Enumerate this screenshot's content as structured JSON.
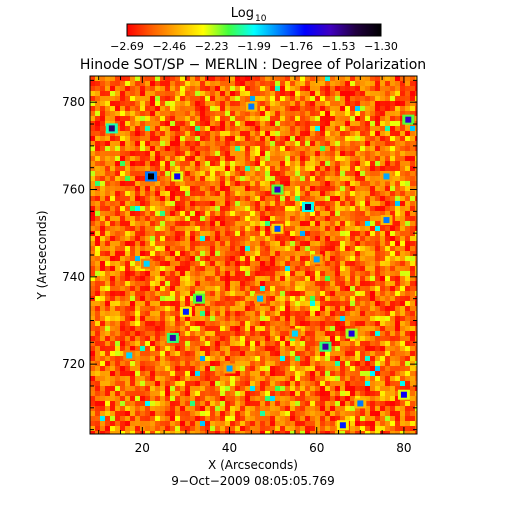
{
  "colorbar": {
    "title": "Log",
    "title_sub": "10",
    "tick_labels": [
      "−2.69",
      "−2.46",
      "−2.23",
      "−1.99",
      "−1.76",
      "−1.53",
      "−1.30"
    ],
    "colors": [
      "#ff0000",
      "#ff6000",
      "#ffb000",
      "#ffff00",
      "#40ff40",
      "#00ffff",
      "#0080ff",
      "#0000ff",
      "#4000c0",
      "#200040",
      "#000000"
    ]
  },
  "chart_data": {
    "type": "heatmap",
    "title": "Hinode SOT/SP − MERLIN : Degree of Polarization",
    "xlabel": "X (Arcseconds)",
    "ylabel": "Y (Arcseconds)",
    "xlim": [
      8,
      83
    ],
    "ylim": [
      704,
      786
    ],
    "xticks": [
      20,
      40,
      60,
      80
    ],
    "yticks": [
      720,
      740,
      760,
      780
    ],
    "value_range": [
      -2.69,
      -1.3
    ],
    "value_label": "Log10",
    "footer": "9−Oct−2009 08:05:05.769",
    "hotspots": [
      {
        "x": 22,
        "y": 763,
        "value": -1.3
      },
      {
        "x": 13,
        "y": 774,
        "value": -1.5
      },
      {
        "x": 51,
        "y": 760,
        "value": -1.6
      },
      {
        "x": 58,
        "y": 756,
        "value": -1.45
      },
      {
        "x": 28,
        "y": 763,
        "value": -1.7
      },
      {
        "x": 30,
        "y": 732,
        "value": -1.75
      },
      {
        "x": 27,
        "y": 726,
        "value": -1.55
      },
      {
        "x": 33,
        "y": 735,
        "value": -1.6
      },
      {
        "x": 62,
        "y": 724,
        "value": -1.55
      },
      {
        "x": 68,
        "y": 727,
        "value": -1.65
      },
      {
        "x": 81,
        "y": 776,
        "value": -1.6
      },
      {
        "x": 80,
        "y": 713,
        "value": -1.7
      },
      {
        "x": 45,
        "y": 779,
        "value": -1.85
      },
      {
        "x": 51,
        "y": 751,
        "value": -1.8
      },
      {
        "x": 76,
        "y": 753,
        "value": -1.85
      },
      {
        "x": 60,
        "y": 744,
        "value": -1.9
      },
      {
        "x": 70,
        "y": 711,
        "value": -1.85
      },
      {
        "x": 66,
        "y": 706,
        "value": -1.75
      },
      {
        "x": 40,
        "y": 719,
        "value": -1.9
      },
      {
        "x": 76,
        "y": 763,
        "value": -1.9
      },
      {
        "x": 21,
        "y": 743,
        "value": -1.95
      },
      {
        "x": 55,
        "y": 727,
        "value": -1.95
      },
      {
        "x": 47,
        "y": 735,
        "value": -1.92
      },
      {
        "x": 17,
        "y": 722,
        "value": -1.95
      }
    ]
  }
}
